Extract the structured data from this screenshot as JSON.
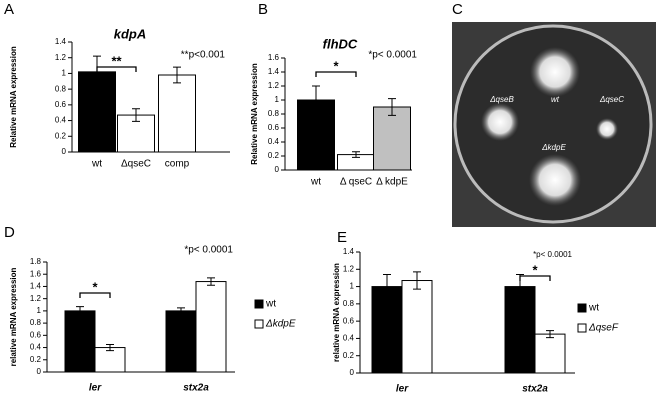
{
  "chart_data": [
    {
      "type": "bar",
      "panel": "A",
      "title": "kdpA",
      "ylabel": "Relative mRNA expression",
      "annotation": "**p<0.001",
      "significance": "**",
      "categories": [
        "wt",
        "ΔqseC",
        "comp"
      ],
      "values": [
        1.02,
        0.47,
        0.98
      ],
      "errors": [
        0.2,
        0.08,
        0.1
      ],
      "colors": [
        "#000000",
        "#ffffff",
        "#ffffff"
      ],
      "ylim": [
        0,
        1.4
      ],
      "yticks": [
        0,
        0.2,
        0.4,
        0.6,
        0.8,
        1,
        1.2,
        1.4
      ]
    },
    {
      "type": "bar",
      "panel": "B",
      "title": "flhDC",
      "ylabel": "Relative mRNA expression",
      "annotation": "*p< 0.0001",
      "significance": "*",
      "categories": [
        "wt",
        "Δ qseC",
        "Δ kdpE"
      ],
      "values": [
        1.0,
        0.22,
        0.9
      ],
      "errors": [
        0.2,
        0.04,
        0.12
      ],
      "colors": [
        "#000000",
        "#ffffff",
        "#c0c0c0"
      ],
      "ylim": [
        0,
        1.6
      ],
      "yticks": [
        0,
        0.2,
        0.4,
        0.6,
        0.8,
        1,
        1.2,
        1.4,
        1.6
      ]
    },
    {
      "type": "bar",
      "panel": "D",
      "ylabel": "relative mRNA expression",
      "annotation": "*p< 0.0001",
      "significance": "*",
      "categories": [
        "ler",
        "stx2a"
      ],
      "series": [
        {
          "name": "wt",
          "color": "#000000",
          "values": [
            1.0,
            1.0
          ],
          "errors": [
            0.07,
            0.05
          ]
        },
        {
          "name": "ΔkdpE",
          "color": "#ffffff",
          "values": [
            0.4,
            1.48
          ],
          "errors": [
            0.05,
            0.06
          ]
        }
      ],
      "ylim": [
        0,
        1.8
      ],
      "yticks": [
        0,
        0.2,
        0.4,
        0.6,
        0.8,
        1,
        1.2,
        1.4,
        1.6,
        1.8
      ]
    },
    {
      "type": "bar",
      "panel": "E",
      "ylabel": "relative mRNA expression",
      "annotation": "*p< 0.0001",
      "significance": "*",
      "categories": [
        "ler",
        "stx2a"
      ],
      "series": [
        {
          "name": "wt",
          "color": "#000000",
          "values": [
            1.0,
            1.0
          ],
          "errors": [
            0.14,
            0.14
          ]
        },
        {
          "name": "ΔqseF",
          "color": "#ffffff",
          "values": [
            1.07,
            0.45
          ],
          "errors": [
            0.1,
            0.04
          ]
        }
      ],
      "ylim": [
        0,
        1.4
      ],
      "yticks": [
        0,
        0.2,
        0.4,
        0.6,
        0.8,
        1,
        1.2,
        1.4
      ]
    }
  ],
  "panel_c": {
    "letter": "C",
    "labels": [
      "ΔqseB",
      "wt",
      "ΔqseC",
      "ΔkdpE"
    ]
  }
}
